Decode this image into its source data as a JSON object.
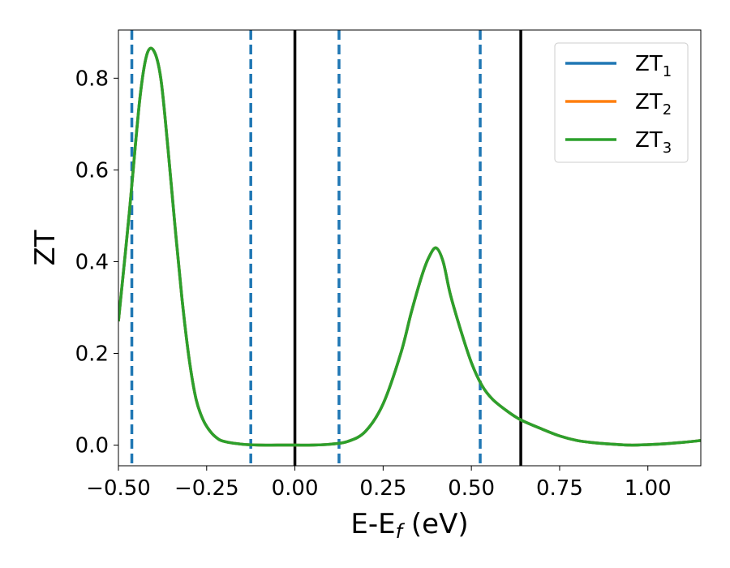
{
  "chart_data": {
    "type": "line",
    "xlabel": "E-E",
    "xlabel_sub": "f",
    "xlabel_unit": " (eV)",
    "ylabel": "ZT",
    "xlim": [
      -0.5,
      1.15
    ],
    "ylim": [
      -0.045,
      0.905
    ],
    "xticks": [
      -0.5,
      -0.25,
      0.0,
      0.25,
      0.5,
      0.75,
      1.0
    ],
    "xtick_labels": [
      "−0.50",
      "−0.25",
      "0.00",
      "0.25",
      "0.50",
      "0.75",
      "1.00"
    ],
    "yticks": [
      0.0,
      0.2,
      0.4,
      0.6,
      0.8
    ],
    "ytick_labels": [
      "0.0",
      "0.2",
      "0.4",
      "0.6",
      "0.8"
    ],
    "grid": false,
    "legend_position": "top-right",
    "series": [
      {
        "name": "ZT",
        "sub": "1",
        "color": "#1f77b4",
        "x": [
          -0.5,
          -0.47,
          -0.44,
          -0.42,
          -0.4,
          -0.38,
          -0.36,
          -0.34,
          -0.32,
          -0.3,
          -0.28,
          -0.26,
          -0.24,
          -0.22,
          -0.2,
          -0.15,
          -0.1,
          -0.05,
          0.0,
          0.05,
          0.1,
          0.15,
          0.2,
          0.25,
          0.3,
          0.33,
          0.36,
          0.38,
          0.4,
          0.42,
          0.44,
          0.47,
          0.5,
          0.53,
          0.56,
          0.6,
          0.64,
          0.7,
          0.75,
          0.8,
          0.85,
          0.9,
          0.95,
          1.0,
          1.05,
          1.1,
          1.15
        ],
        "y": [
          0.27,
          0.5,
          0.75,
          0.85,
          0.86,
          0.8,
          0.65,
          0.48,
          0.32,
          0.19,
          0.1,
          0.055,
          0.03,
          0.015,
          0.008,
          0.002,
          0.0,
          0.0,
          0.0,
          0.0,
          0.002,
          0.008,
          0.03,
          0.09,
          0.2,
          0.29,
          0.37,
          0.41,
          0.43,
          0.4,
          0.33,
          0.25,
          0.18,
          0.13,
          0.1,
          0.075,
          0.055,
          0.035,
          0.02,
          0.01,
          0.005,
          0.002,
          0.0,
          0.001,
          0.003,
          0.006,
          0.01
        ]
      },
      {
        "name": "ZT",
        "sub": "2",
        "color": "#ff7f0e",
        "x": [
          -0.5,
          -0.47,
          -0.44,
          -0.42,
          -0.4,
          -0.38,
          -0.36,
          -0.34,
          -0.32,
          -0.3,
          -0.28,
          -0.26,
          -0.24,
          -0.22,
          -0.2,
          -0.15,
          -0.1,
          -0.05,
          0.0,
          0.05,
          0.1,
          0.15,
          0.2,
          0.25,
          0.3,
          0.33,
          0.36,
          0.38,
          0.4,
          0.42,
          0.44,
          0.47,
          0.5,
          0.53,
          0.56,
          0.6,
          0.64,
          0.7,
          0.75,
          0.8,
          0.85,
          0.9,
          0.95,
          1.0,
          1.05,
          1.1,
          1.15
        ],
        "y": [
          0.27,
          0.5,
          0.75,
          0.85,
          0.86,
          0.8,
          0.65,
          0.48,
          0.32,
          0.19,
          0.1,
          0.055,
          0.03,
          0.015,
          0.008,
          0.002,
          0.0,
          0.0,
          0.0,
          0.0,
          0.002,
          0.008,
          0.03,
          0.09,
          0.2,
          0.29,
          0.37,
          0.41,
          0.43,
          0.4,
          0.33,
          0.25,
          0.18,
          0.13,
          0.1,
          0.075,
          0.055,
          0.035,
          0.02,
          0.01,
          0.005,
          0.002,
          0.0,
          0.001,
          0.003,
          0.006,
          0.01
        ]
      },
      {
        "name": "ZT",
        "sub": "3",
        "color": "#2ca02c",
        "x": [
          -0.5,
          -0.47,
          -0.44,
          -0.42,
          -0.4,
          -0.38,
          -0.36,
          -0.34,
          -0.32,
          -0.3,
          -0.28,
          -0.26,
          -0.24,
          -0.22,
          -0.2,
          -0.15,
          -0.1,
          -0.05,
          0.0,
          0.05,
          0.1,
          0.15,
          0.2,
          0.25,
          0.3,
          0.33,
          0.36,
          0.38,
          0.4,
          0.42,
          0.44,
          0.47,
          0.5,
          0.53,
          0.56,
          0.6,
          0.64,
          0.7,
          0.75,
          0.8,
          0.85,
          0.9,
          0.95,
          1.0,
          1.05,
          1.1,
          1.15
        ],
        "y": [
          0.27,
          0.5,
          0.75,
          0.85,
          0.86,
          0.8,
          0.65,
          0.48,
          0.32,
          0.19,
          0.1,
          0.055,
          0.03,
          0.015,
          0.008,
          0.002,
          0.0,
          0.0,
          0.0,
          0.0,
          0.002,
          0.008,
          0.03,
          0.09,
          0.2,
          0.29,
          0.37,
          0.41,
          0.43,
          0.4,
          0.33,
          0.25,
          0.18,
          0.13,
          0.1,
          0.075,
          0.055,
          0.035,
          0.02,
          0.01,
          0.005,
          0.002,
          0.0,
          0.001,
          0.003,
          0.006,
          0.01
        ]
      }
    ],
    "vlines": [
      {
        "x": -0.462,
        "style": "dashed",
        "color": "#1f77b4"
      },
      {
        "x": -0.125,
        "style": "dashed",
        "color": "#1f77b4"
      },
      {
        "x": 0.0,
        "style": "solid",
        "color": "#000000"
      },
      {
        "x": 0.125,
        "style": "dashed",
        "color": "#1f77b4"
      },
      {
        "x": 0.525,
        "style": "dashed",
        "color": "#1f77b4"
      },
      {
        "x": 0.64,
        "style": "solid",
        "color": "#000000"
      }
    ]
  }
}
